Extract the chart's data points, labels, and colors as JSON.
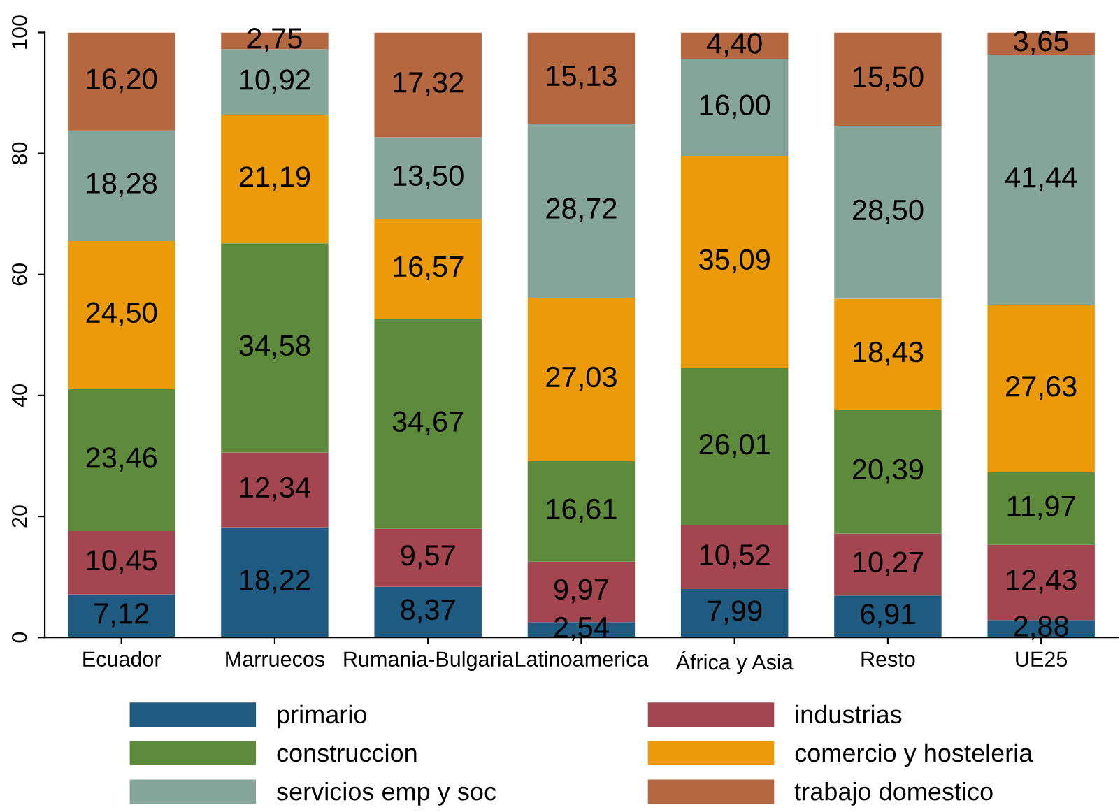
{
  "chart_data": {
    "type": "bar",
    "stacked": true,
    "categories": [
      "Ecuador",
      "Marruecos",
      "Rumania-Bulgaria",
      "Latinoamerica",
      "África y Asia",
      "Resto",
      "UE25"
    ],
    "series": [
      {
        "name": "primario",
        "color": "#1f5a80",
        "values": [
          7.12,
          18.22,
          8.37,
          2.54,
          7.99,
          6.91,
          2.88
        ],
        "value_labels": [
          "7,12",
          "18,22",
          "8,37",
          "2,54",
          "7,99",
          "6,91",
          "2,88"
        ]
      },
      {
        "name": "industrias",
        "color": "#a3464f",
        "values": [
          10.45,
          12.34,
          9.57,
          9.97,
          10.52,
          10.27,
          12.43
        ],
        "value_labels": [
          "10,45",
          "12,34",
          "9,57",
          "9,97",
          "10,52",
          "10,27",
          "12,43"
        ]
      },
      {
        "name": "construccion",
        "color": "#5e8a3c",
        "values": [
          23.46,
          34.58,
          34.67,
          16.61,
          26.01,
          20.39,
          11.97
        ],
        "value_labels": [
          "23,46",
          "34,58",
          "34,67",
          "16,61",
          "26,01",
          "20,39",
          "11,97"
        ]
      },
      {
        "name": "comercio y hosteleria",
        "color": "#eb9a0a",
        "values": [
          24.5,
          21.19,
          16.57,
          27.03,
          35.09,
          18.43,
          27.63
        ],
        "value_labels": [
          "24,50",
          "21,19",
          "16,57",
          "27,03",
          "35,09",
          "18,43",
          "27,63"
        ]
      },
      {
        "name": "servicios emp y soc",
        "color": "#85a59b",
        "values": [
          18.28,
          10.92,
          13.5,
          28.72,
          16.0,
          28.5,
          41.44
        ],
        "value_labels": [
          "18,28",
          "10,92",
          "13,50",
          "28,72",
          "16,00",
          "28,50",
          "41,44"
        ]
      },
      {
        "name": "trabajo domestico",
        "color": "#b5683f",
        "values": [
          16.2,
          2.75,
          17.32,
          15.13,
          4.4,
          15.5,
          3.65
        ],
        "value_labels": [
          "16,20",
          "2,75",
          "17,32",
          "15,13",
          "4,40",
          "15,50",
          "3,65"
        ]
      }
    ],
    "ylim": [
      0,
      100
    ],
    "yticks": [
      0,
      20,
      40,
      60,
      80,
      100
    ],
    "grid": false,
    "legend": "bottom"
  }
}
